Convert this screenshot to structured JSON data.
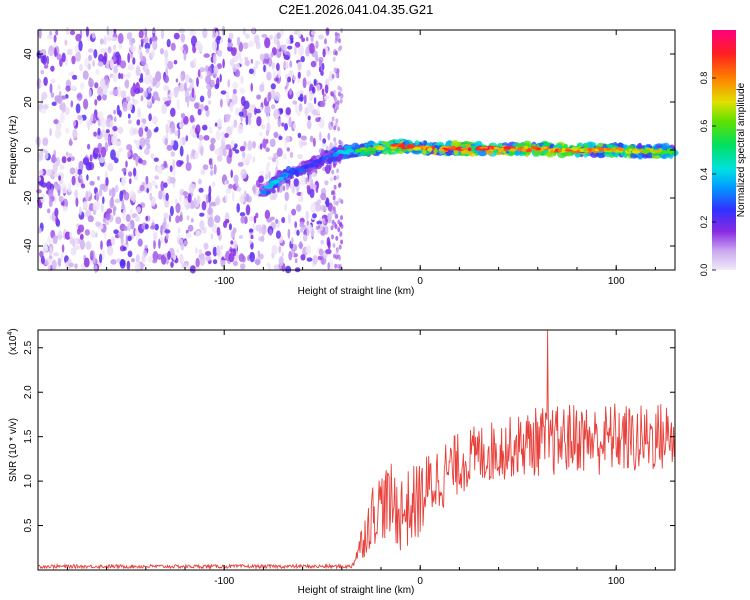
{
  "title": "C2E1.2026.041.04.35.G21",
  "chart_data": [
    {
      "type": "heatmap",
      "title": "C2E1.2026.041.04.35.G21",
      "xlabel": "Height of straight line (km)",
      "ylabel": "Frequency (Hz)",
      "xlim": [
        -195,
        130
      ],
      "ylim": [
        -50,
        50
      ],
      "xticks": [
        -100,
        0,
        100
      ],
      "yticks": [
        -40,
        -20,
        0,
        20,
        40
      ],
      "colorbar": {
        "label": "Normalized spectral amplitude",
        "range": [
          0,
          1
        ],
        "ticks": [
          "0.0",
          "0.2",
          "0.4",
          "0.6",
          "0.8"
        ]
      },
      "noise_region_x": [
        -195,
        -45
      ],
      "trace": {
        "x": [
          -80,
          -75,
          -70,
          -65,
          -60,
          -55,
          -50,
          -45,
          -40,
          -35,
          -30,
          -25,
          -20,
          -15,
          -10,
          -5,
          0,
          10,
          20,
          30,
          40,
          50,
          60,
          70,
          80,
          90,
          100,
          110,
          120,
          130
        ],
        "freq": [
          -17,
          -14,
          -11,
          -9,
          -8,
          -6,
          -4,
          -2,
          -1,
          -0.5,
          0,
          0.5,
          1,
          1.5,
          1.5,
          1,
          1,
          0.5,
          0.5,
          0.5,
          0.5,
          0.5,
          0.5,
          0,
          0,
          0,
          0,
          -0.5,
          -0.5,
          -0.5
        ],
        "amp": [
          0.35,
          0.45,
          0.4,
          0.3,
          0.3,
          0.25,
          0.3,
          0.35,
          0.4,
          0.5,
          0.6,
          0.65,
          0.75,
          0.85,
          0.9,
          0.85,
          0.85,
          0.9,
          0.95,
          0.95,
          0.9,
          0.85,
          0.85,
          0.85,
          0.8,
          0.8,
          0.8,
          0.75,
          0.75,
          0.6
        ]
      }
    },
    {
      "type": "line",
      "series_name": "SNR",
      "xlabel": "Height of straight line (km)",
      "ylabel": "SNR (10 * v/v)",
      "y_multiplier": "(x10",
      "y_multiplier_exp": "4",
      "xlim": [
        -195,
        130
      ],
      "ylim": [
        0,
        2.7
      ],
      "xticks": [
        -100,
        0,
        100
      ],
      "yticks": [
        "0.5",
        "1.0",
        "1.5",
        "2.0",
        "2.5"
      ],
      "color": "#e8403a",
      "envelope": {
        "x": [
          -195,
          -35,
          -30,
          -25,
          -20,
          -15,
          -10,
          -5,
          0,
          5,
          10,
          20,
          30,
          40,
          50,
          60,
          70,
          80,
          90,
          100,
          110,
          120,
          130
        ],
        "mean": [
          0.04,
          0.04,
          0.3,
          0.6,
          0.75,
          0.75,
          0.65,
          0.7,
          0.8,
          0.95,
          1.05,
          1.2,
          1.3,
          1.35,
          1.4,
          1.45,
          1.45,
          1.5,
          1.45,
          1.5,
          1.45,
          1.5,
          1.5
        ],
        "spread": [
          0.02,
          0.02,
          0.2,
          0.35,
          0.4,
          0.45,
          0.45,
          0.45,
          0.45,
          0.4,
          0.4,
          0.35,
          0.35,
          0.35,
          0.35,
          0.4,
          0.4,
          0.4,
          0.4,
          0.4,
          0.4,
          0.4,
          0.4
        ]
      },
      "peak": {
        "x": 65,
        "y": 2.7
      }
    }
  ]
}
